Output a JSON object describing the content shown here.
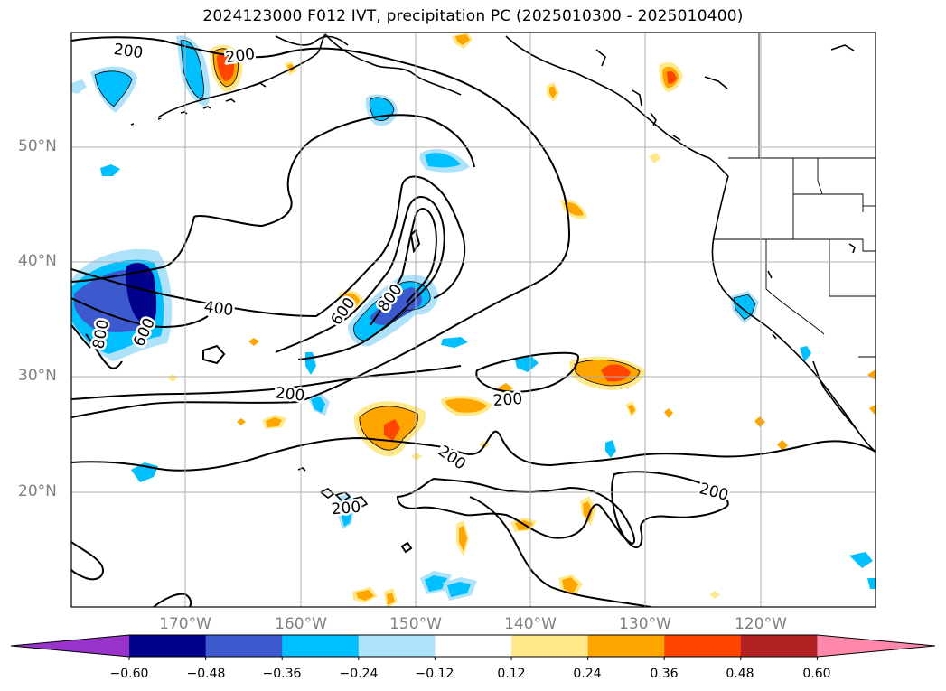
{
  "title": "2024123000 F012 IVT, precipitation PC (2025010300 - 2025010400)",
  "axes": {
    "lat_labels": [
      "50°N",
      "40°N",
      "30°N",
      "20°N"
    ],
    "lon_labels": [
      "170°W",
      "160°W",
      "150°W",
      "140°W",
      "130°W",
      "120°W"
    ],
    "grid": true
  },
  "map": {
    "projection": "PlateCarree",
    "lon_range": [
      -180,
      -110
    ],
    "lat_range": [
      10,
      60
    ]
  },
  "contour_labels": [
    "200",
    "200",
    "400",
    "600",
    "800",
    "600",
    "800",
    "200",
    "200",
    "200",
    "200",
    "200"
  ],
  "colorbar": {
    "extend": "both",
    "tick_labels": [
      "−0.60",
      "−0.48",
      "−0.36",
      "−0.24",
      "−0.12",
      "0.12",
      "0.24",
      "0.36",
      "0.48",
      "0.60"
    ],
    "colors": [
      "#9933cc",
      "#00008b",
      "#3c5acd",
      "#00bfff",
      "#aee2fa",
      "#ffffff",
      "#ffe98a",
      "#ffa500",
      "#ff4500",
      "#b22222",
      "#ff88aa"
    ]
  },
  "colors": {
    "neg_light": "#aee2fa",
    "neg_med": "#00bfff",
    "neg_strong": "#3c5acd",
    "neg_extreme": "#00008b",
    "pos_light": "#ffe98a",
    "pos_med": "#ffa500",
    "pos_strong": "#ff4500"
  }
}
